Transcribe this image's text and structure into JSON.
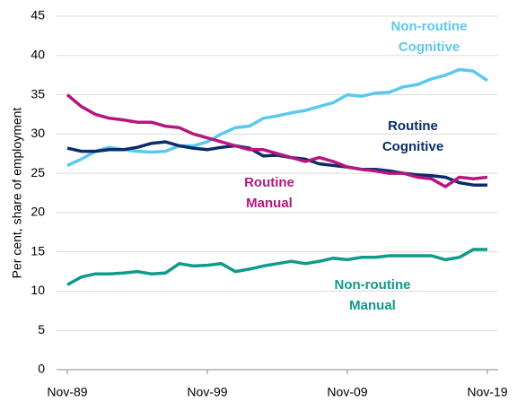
{
  "chart_data": {
    "type": "line",
    "y_label": "Per cent, share of employment",
    "x": [
      "Nov-89",
      null,
      null,
      null,
      null,
      null,
      null,
      null,
      null,
      null,
      "Nov-99",
      null,
      null,
      null,
      null,
      null,
      null,
      null,
      null,
      null,
      "Nov-09",
      null,
      null,
      null,
      null,
      null,
      null,
      null,
      null,
      null,
      "Nov-19"
    ],
    "series": [
      {
        "name": "Non-routine Cognitive",
        "color": "#5bc8f0",
        "values": [
          26,
          26.8,
          27.8,
          28.3,
          28,
          27.8,
          27.7,
          27.8,
          28.5,
          28.5,
          29,
          30,
          30.8,
          31,
          32,
          32.3,
          32.7,
          33,
          33.5,
          34,
          35,
          34.8,
          35.2,
          35.3,
          36,
          36.3,
          37,
          37.5,
          38.2,
          38,
          36.8
        ]
      },
      {
        "name": "Routine Cognitive",
        "color": "#0b2c6b",
        "values": [
          28.2,
          27.8,
          27.8,
          28,
          28,
          28.3,
          28.8,
          29,
          28.5,
          28.2,
          28,
          28.3,
          28.5,
          28.2,
          27.2,
          27.3,
          27,
          26.8,
          26.2,
          26,
          25.8,
          25.5,
          25.5,
          25.3,
          25,
          24.8,
          24.7,
          24.5,
          23.8,
          23.5,
          23.5
        ]
      },
      {
        "name": "Routine Manual",
        "color": "#b5167f",
        "values": [
          35,
          33.5,
          32.5,
          32,
          31.8,
          31.5,
          31.5,
          31,
          30.8,
          30,
          29.5,
          29,
          28.5,
          28,
          28,
          27.5,
          27,
          26.5,
          27,
          26.5,
          25.8,
          25.5,
          25.3,
          25,
          25,
          24.5,
          24.3,
          23.3,
          24.5,
          24.3,
          24.5
        ]
      },
      {
        "name": "Non-routine Manual",
        "color": "#0e9b8a",
        "values": [
          10.8,
          11.8,
          12.2,
          12.2,
          12.3,
          12.5,
          12.2,
          12.3,
          13.5,
          13.2,
          13.3,
          13.5,
          12.5,
          12.8,
          13.2,
          13.5,
          13.8,
          13.5,
          13.8,
          14.2,
          14,
          14.3,
          14.3,
          14.5,
          14.5,
          14.5,
          14.5,
          14,
          14.3,
          15.3,
          15.3
        ]
      }
    ],
    "ylim": [
      0,
      45
    ],
    "yticks": [
      0,
      5,
      10,
      15,
      20,
      25,
      30,
      35,
      40,
      45
    ],
    "grid": true
  }
}
